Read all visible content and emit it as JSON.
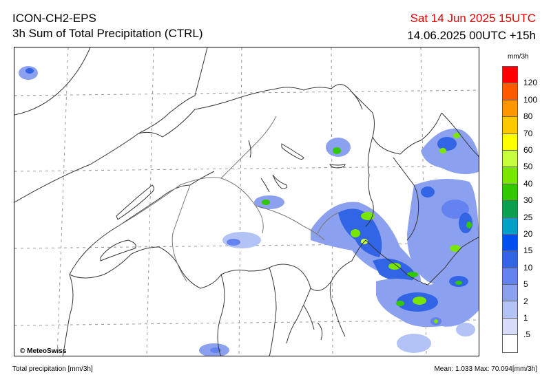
{
  "header": {
    "model": "ICON-CH2-EPS",
    "product": "3h Sum of Total Precipitation (CTRL)",
    "valid_time": "Sat 14 Jun 2025 15UTC",
    "run_time": "14.06.2025 00UTC +15h"
  },
  "map": {
    "copyright": "© MeteoSwiss"
  },
  "legend": {
    "unit": "mm/3h",
    "labels": [
      "120",
      "100",
      "80",
      "70",
      "60",
      "50",
      "40",
      "30",
      "25",
      "20",
      "15",
      "10",
      "5",
      "2",
      "1",
      ".5"
    ],
    "colors": [
      "#ff0000",
      "#ff5a00",
      "#ff9600",
      "#ffc800",
      "#ffff00",
      "#c8ff3c",
      "#78e600",
      "#32c800",
      "#0aa050",
      "#00a0c8",
      "#0050f0",
      "#3264e6",
      "#6482f0",
      "#8ca0f0",
      "#b4c3f5",
      "#d7dcfa",
      "#ffffff"
    ]
  },
  "footer": {
    "left": "Total precipitation [mm/3h]",
    "mean_label": "Mean:",
    "mean_value": "1.033",
    "max_label": "Max:",
    "max_value": "70.094",
    "unit": "[mm/3h]"
  }
}
